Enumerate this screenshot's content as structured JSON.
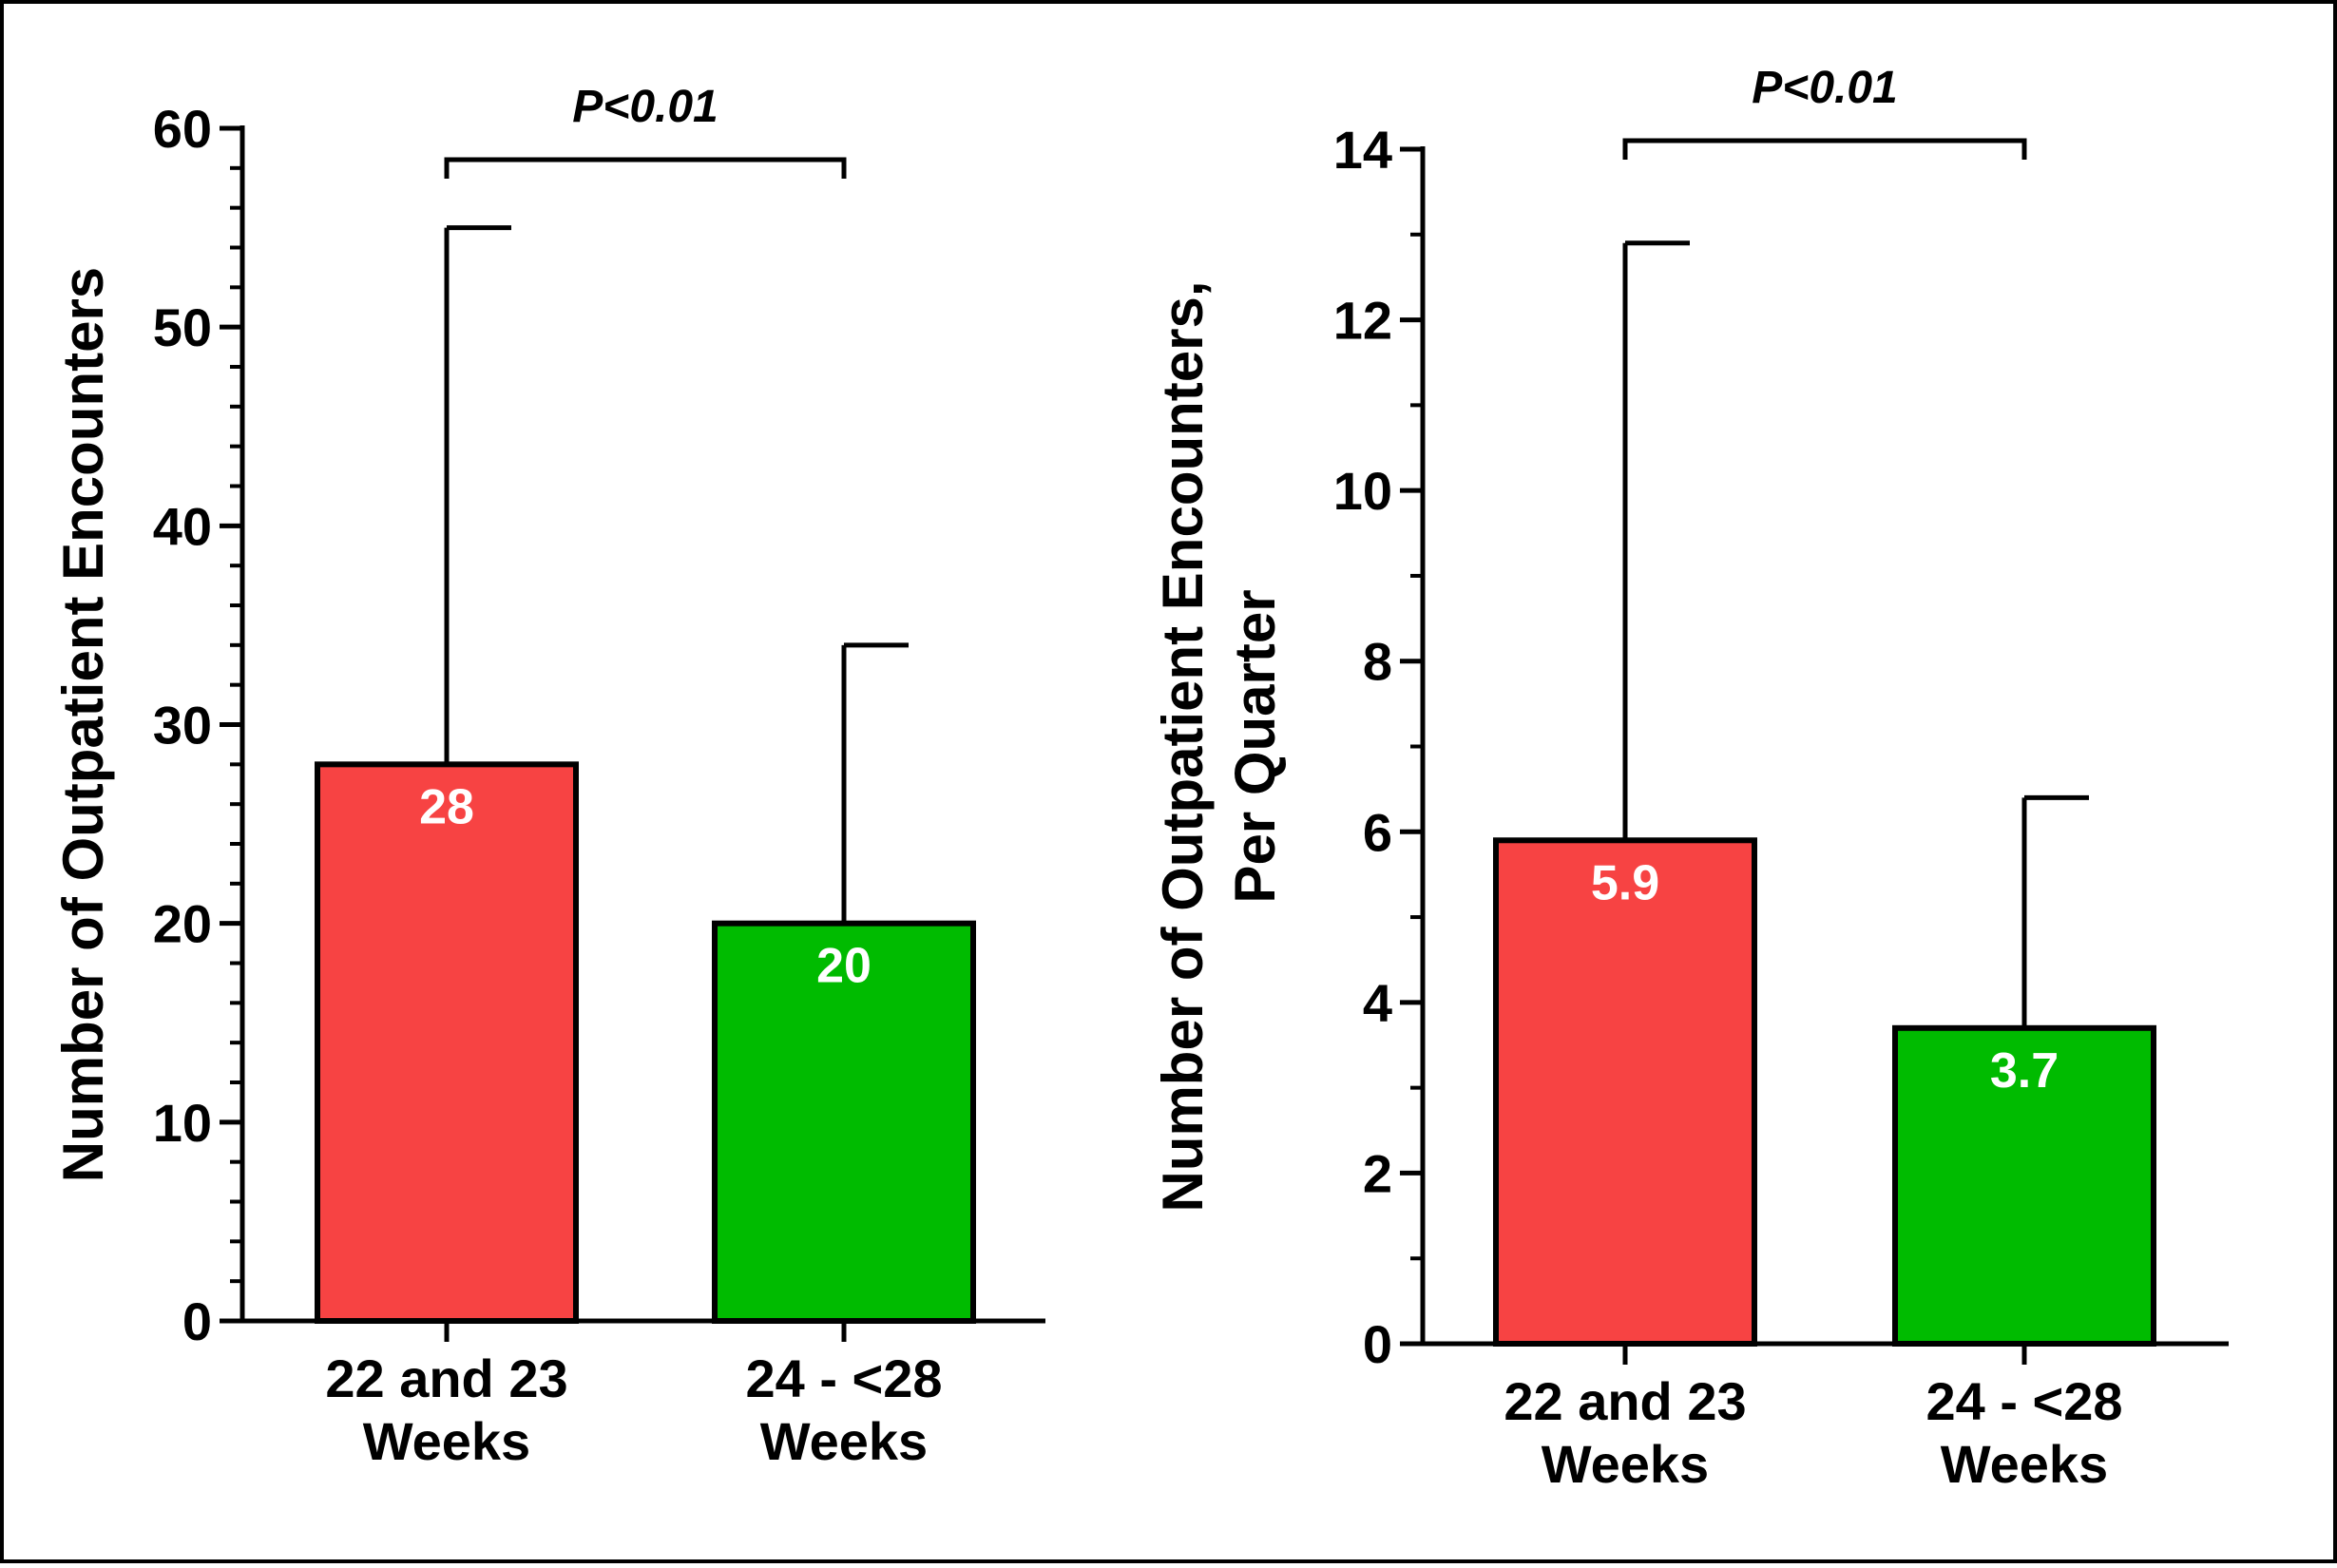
{
  "chart_data": [
    {
      "type": "bar",
      "categories": [
        [
          "22 and 23",
          "Weeks"
        ],
        [
          "24 - <28",
          "Weeks"
        ]
      ],
      "values": [
        28,
        20
      ],
      "value_labels": [
        "28",
        "20"
      ],
      "error_upper": [
        55,
        34
      ],
      "colors": [
        "#f74343",
        "#00bb00"
      ],
      "ylabel": "Number of Outpatient  Encounters",
      "ylim": [
        0,
        60
      ],
      "yticks": [
        "0",
        "10",
        "20",
        "30",
        "40",
        "50",
        "60"
      ],
      "minor_ticks_per_interval": 5,
      "annotation": "P<0.01"
    },
    {
      "type": "bar",
      "categories": [
        [
          "22 and 23",
          "Weeks"
        ],
        [
          "24 - <28",
          "Weeks"
        ]
      ],
      "values": [
        5.9,
        3.7
      ],
      "value_labels": [
        "5.9",
        "3.7"
      ],
      "error_upper": [
        12.9,
        6.4
      ],
      "colors": [
        "#f74343",
        "#00bb00"
      ],
      "ylabel": [
        "Number of Outpatient Encounters,",
        "Per Quarter"
      ],
      "ylim": [
        0,
        14
      ],
      "yticks": [
        "0",
        "2",
        "4",
        "6",
        "8",
        "10",
        "12",
        "14"
      ],
      "minor_ticks_per_interval": 2,
      "annotation": "P<0.01"
    }
  ]
}
